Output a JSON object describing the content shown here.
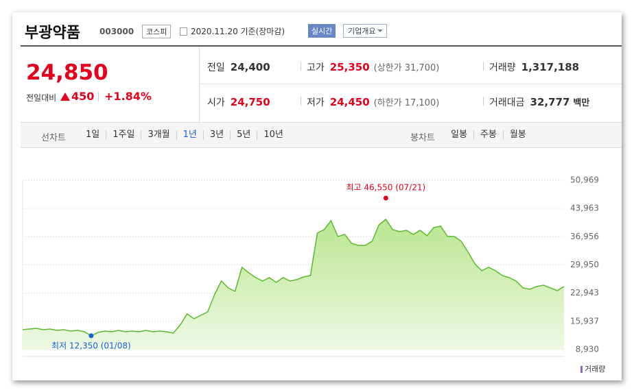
{
  "header": {
    "name": "부광약품",
    "code": "003000",
    "market": "코스피",
    "date": "2020.11.20 기준(장마감)",
    "realtime": "실시간",
    "company_info": "기업개요"
  },
  "price": {
    "current": "24,850",
    "change_label": "전일대비",
    "change": "450",
    "change_pct": "+1.84%"
  },
  "quote_table": {
    "rows": [
      [
        {
          "label": "전일",
          "value": "24,400"
        },
        {
          "label": "고가",
          "value": "25,350",
          "note": "(상한가 31,700)"
        },
        {
          "label": "거래량",
          "value": "1,317,188"
        }
      ],
      [
        {
          "label": "시가",
          "value": "24,750"
        },
        {
          "label": "저가",
          "value": "24,450",
          "note": "(하한가 17,100)"
        },
        {
          "label": "거래대금",
          "value": "32,777",
          "unit": "백만"
        }
      ]
    ]
  },
  "tabs": {
    "line_label": "선차트",
    "line_periods": [
      "1일",
      "1주일",
      "3개월",
      "1년",
      "3년",
      "5년",
      "10년"
    ],
    "candle_label": "봉차트",
    "candle_periods": [
      "일봉",
      "주봉",
      "월봉"
    ]
  },
  "chart_data": {
    "type": "area",
    "color": "#5cb82e",
    "values": [
      13870,
      14040,
      14210,
      13870,
      14040,
      13700,
      13870,
      13530,
      13700,
      13360,
      12350,
      13190,
      13530,
      13360,
      13700,
      13360,
      13530,
      13360,
      13700,
      13360,
      13530,
      13360,
      13020,
      15060,
      17780,
      16590,
      17440,
      18290,
      22550,
      25950,
      24250,
      23400,
      29350,
      27990,
      26800,
      25950,
      26800,
      25610,
      26800,
      25950,
      26290,
      26970,
      27310,
      37860,
      38720,
      40930,
      37010,
      37520,
      35310,
      34800,
      34800,
      35820,
      39910,
      41270,
      38720,
      38200,
      38550,
      37520,
      38550,
      37180,
      39230,
      39570,
      37010,
      37010,
      35820,
      33100,
      30210,
      28500,
      29350,
      28500,
      27310,
      26800,
      25950,
      24250,
      23910,
      24590,
      24930,
      24250,
      23570,
      24590
    ],
    "ylim": [
      8930,
      50969
    ],
    "yticks": [
      {
        "value": 8930,
        "label": "8,930"
      },
      {
        "value": 15937,
        "label": "15,937"
      },
      {
        "value": 22943,
        "label": "22,943"
      },
      {
        "value": 29950,
        "label": "29,950"
      },
      {
        "value": 36956,
        "label": "36,956"
      },
      {
        "value": 43963,
        "label": "43,963"
      },
      {
        "value": 50969,
        "label": "50,969"
      }
    ],
    "grid": true,
    "high": {
      "label": "최고 46,550 (07/21)",
      "value": 46550,
      "color": "#e4001b"
    },
    "low": {
      "label": "최저 12,350 (01/08)",
      "value": 12350,
      "color": "#1a5ed8"
    },
    "volume_label": "거래량"
  }
}
